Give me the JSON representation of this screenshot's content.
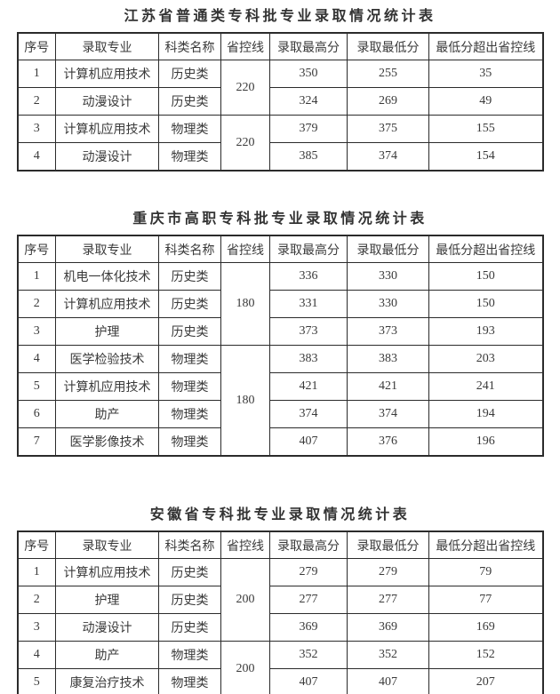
{
  "page": {
    "background_color": "#ffffff",
    "text_color": "#3a3a3a",
    "border_color": "#2b2b2b"
  },
  "columns": [
    "序号",
    "录取专业",
    "科类名称",
    "省控线",
    "录取最高分",
    "录取最低分",
    "最低分超出省控线"
  ],
  "tables": [
    {
      "title": "江苏省普通类专科批专业录取情况统计表",
      "rows": [
        {
          "no": "1",
          "major": "计算机应用技术",
          "category": "历史类",
          "control": "220",
          "control_rows": 2,
          "max": "350",
          "min": "255",
          "exceed": "35"
        },
        {
          "no": "2",
          "major": "动漫设计",
          "category": "历史类",
          "max": "324",
          "min": "269",
          "exceed": "49"
        },
        {
          "no": "3",
          "major": "计算机应用技术",
          "category": "物理类",
          "control": "220",
          "control_rows": 2,
          "max": "379",
          "min": "375",
          "exceed": "155"
        },
        {
          "no": "4",
          "major": "动漫设计",
          "category": "物理类",
          "max": "385",
          "min": "374",
          "exceed": "154"
        }
      ]
    },
    {
      "title": "重庆市高职专科批专业录取情况统计表",
      "rows": [
        {
          "no": "1",
          "major": "机电一体化技术",
          "category": "历史类",
          "control": "180",
          "control_rows": 3,
          "max": "336",
          "min": "330",
          "exceed": "150"
        },
        {
          "no": "2",
          "major": "计算机应用技术",
          "category": "历史类",
          "max": "331",
          "min": "330",
          "exceed": "150"
        },
        {
          "no": "3",
          "major": "护理",
          "category": "历史类",
          "max": "373",
          "min": "373",
          "exceed": "193"
        },
        {
          "no": "4",
          "major": "医学检验技术",
          "category": "物理类",
          "control": "180",
          "control_rows": 4,
          "max": "383",
          "min": "383",
          "exceed": "203"
        },
        {
          "no": "5",
          "major": "计算机应用技术",
          "category": "物理类",
          "max": "421",
          "min": "421",
          "exceed": "241"
        },
        {
          "no": "6",
          "major": "助产",
          "category": "物理类",
          "max": "374",
          "min": "374",
          "exceed": "194"
        },
        {
          "no": "7",
          "major": "医学影像技术",
          "category": "物理类",
          "max": "407",
          "min": "376",
          "exceed": "196"
        }
      ]
    },
    {
      "title": "安徽省专科批专业录取情况统计表",
      "rows": [
        {
          "no": "1",
          "major": "计算机应用技术",
          "category": "历史类",
          "control": "200",
          "control_rows": 3,
          "max": "279",
          "min": "279",
          "exceed": "79"
        },
        {
          "no": "2",
          "major": "护理",
          "category": "历史类",
          "max": "277",
          "min": "277",
          "exceed": "77"
        },
        {
          "no": "3",
          "major": "动漫设计",
          "category": "历史类",
          "max": "369",
          "min": "369",
          "exceed": "169"
        },
        {
          "no": "4",
          "major": "助产",
          "category": "物理类",
          "control": "200",
          "control_rows": 2,
          "max": "352",
          "min": "352",
          "exceed": "152"
        },
        {
          "no": "5",
          "major": "康复治疗技术",
          "category": "物理类",
          "max": "407",
          "min": "407",
          "exceed": "207"
        }
      ]
    }
  ]
}
